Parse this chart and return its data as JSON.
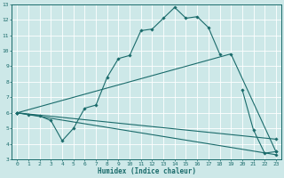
{
  "xlabel": "Humidex (Indice chaleur)",
  "background_color": "#cde8e8",
  "grid_color": "#b0d8d8",
  "line_color": "#1a6b6b",
  "y_main": [
    6.0,
    5.9,
    5.8,
    5.5,
    4.2,
    5.0,
    6.3,
    6.5,
    8.3,
    9.5,
    9.7,
    11.3,
    11.4,
    12.1,
    12.8,
    12.1,
    12.2,
    11.5,
    9.8,
    null,
    7.5,
    4.9,
    3.4,
    3.5
  ],
  "y_upper": [
    6.0,
    null,
    null,
    null,
    null,
    null,
    null,
    null,
    null,
    null,
    null,
    null,
    null,
    null,
    null,
    null,
    null,
    null,
    null,
    9.8,
    null,
    null,
    null,
    3.5
  ],
  "y_lower1": [
    6.0,
    null,
    null,
    null,
    null,
    null,
    null,
    null,
    null,
    null,
    null,
    null,
    null,
    null,
    null,
    null,
    null,
    null,
    null,
    null,
    null,
    null,
    null,
    3.3
  ],
  "y_lower2": [
    6.0,
    null,
    null,
    null,
    null,
    null,
    null,
    null,
    null,
    null,
    null,
    null,
    null,
    null,
    null,
    null,
    null,
    null,
    null,
    null,
    null,
    null,
    null,
    4.3
  ],
  "ylim": [
    3,
    13
  ],
  "xlim": [
    -0.5,
    23.5
  ],
  "yticks": [
    3,
    4,
    5,
    6,
    7,
    8,
    9,
    10,
    11,
    12,
    13
  ],
  "xticks": [
    0,
    1,
    2,
    3,
    4,
    5,
    6,
    7,
    8,
    9,
    10,
    11,
    12,
    13,
    14,
    15,
    16,
    17,
    18,
    19,
    20,
    21,
    22,
    23
  ]
}
